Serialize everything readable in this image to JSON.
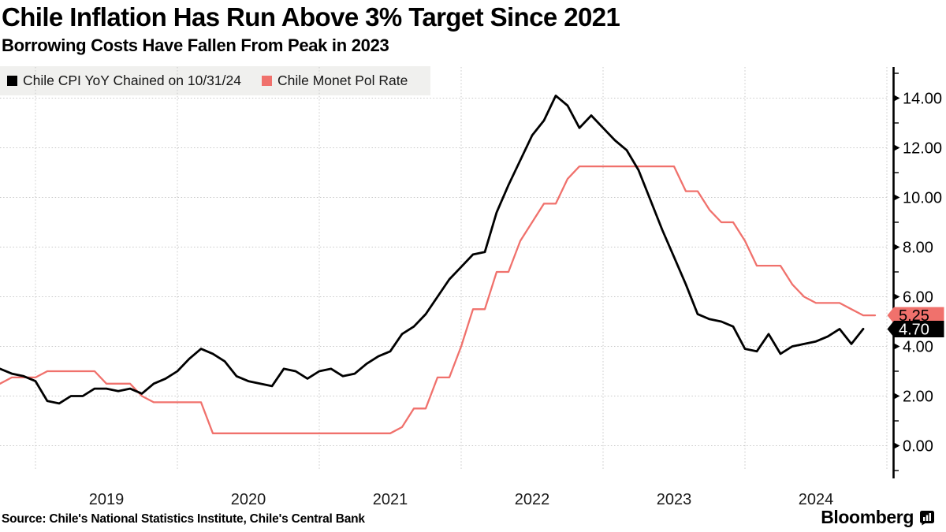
{
  "header": {
    "title": "Chile Inflation Has Run Above 3% Target Since 2021",
    "subtitle": "Borrowing Costs Have Fallen From Peak in 2023"
  },
  "legend": {
    "items": [
      {
        "label": "Chile CPI YoY Chained on 10/31/24",
        "color": "#000000"
      },
      {
        "label": "Chile Monet Pol Rate",
        "color": "#f0716c"
      }
    ]
  },
  "footer": {
    "source": "Source: Chile's National Statistics Institute, Chile's Central Bank",
    "brand": "Bloomberg",
    "brand_icon": "bar-chart-bubble-icon"
  },
  "chart_data": {
    "type": "line",
    "title": "Chile Inflation Has Run Above 3% Target Since 2021",
    "subtitle": "Borrowing Costs Have Fallen From Peak in 2023",
    "grid": "dotted",
    "legend_position": "top-left",
    "x_axis": {
      "labels": [
        "2019",
        "2020",
        "2021",
        "2022",
        "2023",
        "2024"
      ],
      "range": [
        "2018-10",
        "2025-01"
      ]
    },
    "y_axis": {
      "side": "right",
      "range": [
        -1.4,
        15.2
      ],
      "major_ticks": [
        {
          "value": 14,
          "label": "14.00"
        },
        {
          "value": 12,
          "label": "12.00"
        },
        {
          "value": 10,
          "label": "10.00"
        },
        {
          "value": 8,
          "label": "8.00"
        },
        {
          "value": 6,
          "label": "6.00"
        },
        {
          "value": 4,
          "label": "4.00"
        },
        {
          "value": 2,
          "label": "2.00"
        },
        {
          "value": 0,
          "label": "0.00"
        }
      ],
      "minor_ticks": [
        15,
        13,
        11,
        9,
        7,
        5,
        3,
        1,
        -1
      ]
    },
    "series": [
      {
        "name": "Chile CPI YoY Chained on 10/31/24",
        "color": "#000000",
        "line_width": 2.8,
        "frequency": "monthly",
        "start_year": 2018,
        "start_month": 9,
        "callout": {
          "label": "4.70",
          "bg": "#000000",
          "text_color": "#ffffff"
        },
        "values": [
          3.1,
          2.9,
          2.8,
          2.6,
          1.8,
          1.7,
          2.0,
          2.0,
          2.3,
          2.3,
          2.2,
          2.3,
          2.1,
          2.5,
          2.7,
          3.0,
          3.5,
          3.9,
          3.7,
          3.4,
          2.8,
          2.6,
          2.5,
          2.4,
          3.1,
          3.0,
          2.7,
          3.0,
          3.1,
          2.8,
          2.9,
          3.3,
          3.6,
          3.8,
          4.5,
          4.8,
          5.3,
          6.0,
          6.7,
          7.2,
          7.7,
          7.8,
          9.4,
          10.5,
          11.5,
          12.5,
          13.1,
          14.1,
          13.7,
          12.8,
          13.3,
          12.8,
          12.3,
          11.9,
          11.1,
          9.9,
          8.7,
          7.6,
          6.5,
          5.3,
          5.1,
          5.0,
          4.8,
          3.9,
          3.8,
          4.5,
          3.7,
          4.0,
          4.1,
          4.2,
          4.4,
          4.7,
          4.1,
          4.7
        ]
      },
      {
        "name": "Chile Monet Pol Rate",
        "color": "#f0716c",
        "line_width": 2.3,
        "frequency": "monthly",
        "start_year": 2018,
        "start_month": 9,
        "callout": {
          "label": "5.25",
          "bg": "#f0716c",
          "text_color": "#000000"
        },
        "values": [
          2.5,
          2.75,
          2.75,
          2.75,
          3.0,
          3.0,
          3.0,
          3.0,
          3.0,
          2.5,
          2.5,
          2.5,
          2.0,
          1.75,
          1.75,
          1.75,
          1.75,
          1.75,
          0.5,
          0.5,
          0.5,
          0.5,
          0.5,
          0.5,
          0.5,
          0.5,
          0.5,
          0.5,
          0.5,
          0.5,
          0.5,
          0.5,
          0.5,
          0.5,
          0.75,
          1.5,
          1.5,
          2.75,
          2.75,
          4.0,
          5.5,
          5.5,
          7.0,
          7.0,
          8.25,
          9.0,
          9.75,
          9.75,
          10.75,
          11.25,
          11.25,
          11.25,
          11.25,
          11.25,
          11.25,
          11.25,
          11.25,
          11.25,
          10.25,
          10.25,
          9.5,
          9.0,
          9.0,
          8.25,
          7.25,
          7.25,
          7.25,
          6.5,
          6.0,
          5.75,
          5.75,
          5.75,
          5.5,
          5.25,
          5.25
        ]
      }
    ]
  }
}
